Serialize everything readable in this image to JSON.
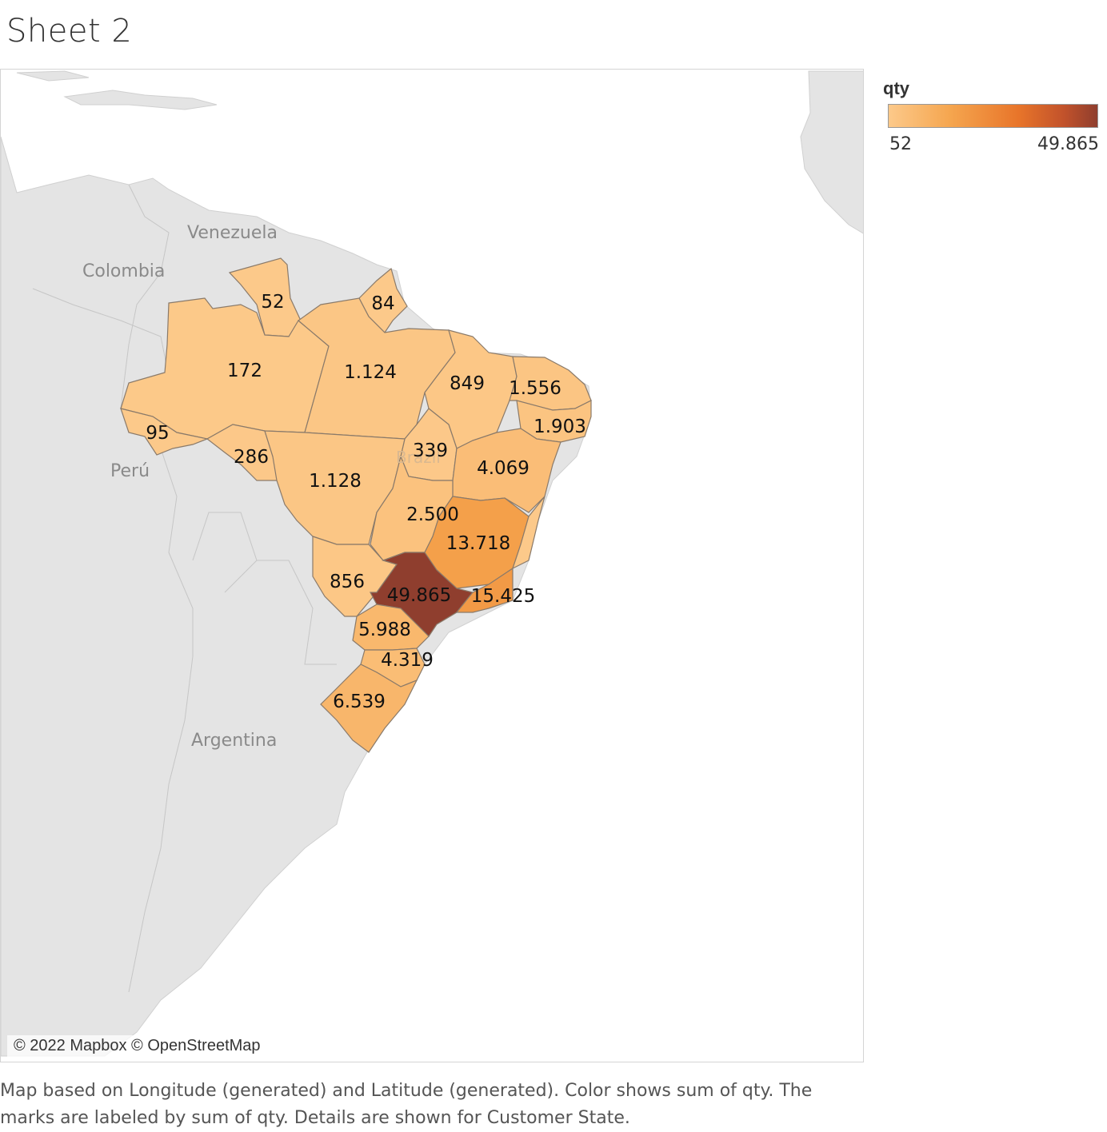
{
  "title": "Sheet 2",
  "attribution": "© 2022 Mapbox © OpenStreetMap",
  "legend": {
    "title": "qty",
    "min_label": "52",
    "max_label": "49.865",
    "colors": [
      "#fcc98a",
      "#f5a54e",
      "#e8752a",
      "#c2522b",
      "#8f3e2e"
    ]
  },
  "country_labels": {
    "venezuela": "Venezuela",
    "colombia": "Colombia",
    "peru": "Perú",
    "argentina": "Argentina",
    "brazil": "Brazil"
  },
  "states": [
    {
      "id": "rr",
      "qty": 52,
      "label": "52"
    },
    {
      "id": "ap",
      "qty": 84,
      "label": "84"
    },
    {
      "id": "am",
      "qty": 172,
      "label": "172"
    },
    {
      "id": "pa",
      "qty": 1124,
      "label": "1.124"
    },
    {
      "id": "ma",
      "qty": 849,
      "label": "849"
    },
    {
      "id": "ce",
      "qty": 1556,
      "label": "1.556"
    },
    {
      "id": "pe",
      "qty": 1903,
      "label": "1.903"
    },
    {
      "id": "ac",
      "qty": 95,
      "label": "95"
    },
    {
      "id": "ro",
      "qty": 286,
      "label": "286"
    },
    {
      "id": "to",
      "qty": 339,
      "label": "339"
    },
    {
      "id": "ba",
      "qty": 4069,
      "label": "4.069"
    },
    {
      "id": "mt",
      "qty": 1128,
      "label": "1.128"
    },
    {
      "id": "go",
      "qty": 2500,
      "label": "2.500"
    },
    {
      "id": "mg",
      "qty": 13718,
      "label": "13.718"
    },
    {
      "id": "ms",
      "qty": 856,
      "label": "856"
    },
    {
      "id": "sp",
      "qty": 49865,
      "label": "49.865"
    },
    {
      "id": "rj",
      "qty": 15425,
      "label": "15.425"
    },
    {
      "id": "pr",
      "qty": 5988,
      "label": "5.988"
    },
    {
      "id": "sc",
      "qty": 4319,
      "label": "4.319"
    },
    {
      "id": "rs",
      "qty": 6539,
      "label": "6.539"
    }
  ],
  "caption": "Map based on Longitude (generated) and Latitude (generated).  Color shows sum of qty.  The marks are labeled by sum of qty.  Details are shown for Customer State."
}
